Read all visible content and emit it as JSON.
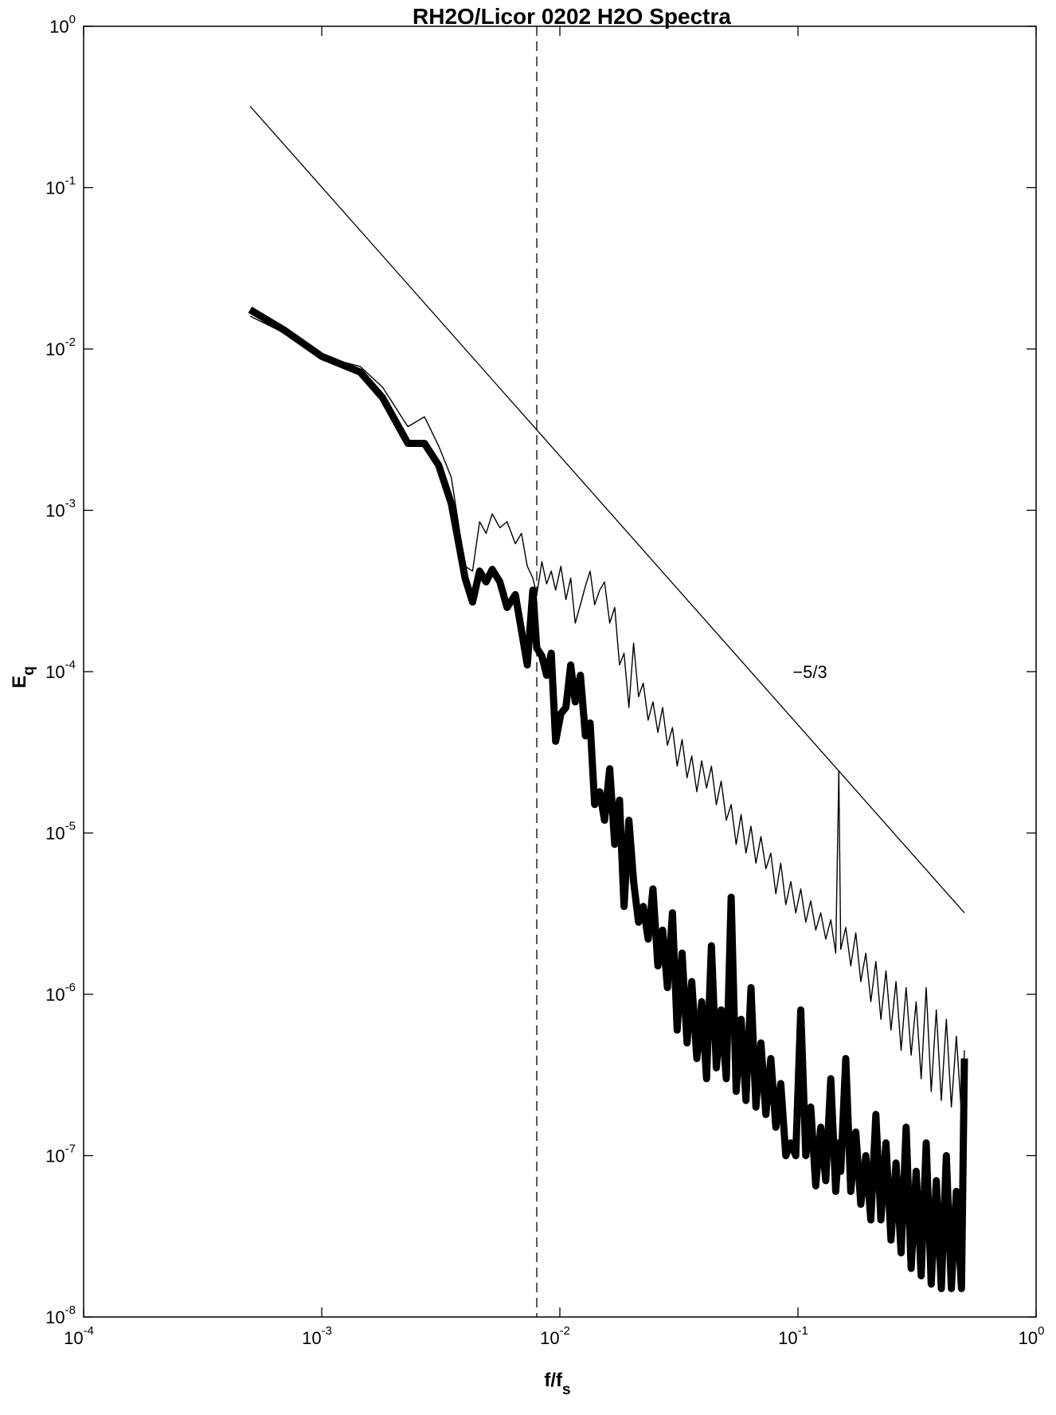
{
  "chart_data": {
    "type": "line",
    "title": "RH2O/Licor 0202 H2O Spectra",
    "xlabel": {
      "base": "f/f",
      "sub": "s"
    },
    "ylabel": {
      "base": "E",
      "sub": "q"
    },
    "x_scale": "log",
    "y_scale": "log",
    "xlim": [
      0.0001,
      1
    ],
    "ylim": [
      1e-08,
      1
    ],
    "grid": false,
    "x_ticks": [
      {
        "value": 0.0001,
        "base": "10",
        "exp": "-4"
      },
      {
        "value": 0.001,
        "base": "10",
        "exp": "-3"
      },
      {
        "value": 0.01,
        "base": "10",
        "exp": "-2"
      },
      {
        "value": 0.1,
        "base": "10",
        "exp": "-1"
      },
      {
        "value": 1,
        "base": "10",
        "exp": "0"
      }
    ],
    "y_ticks": [
      {
        "value": 1,
        "base": "10",
        "exp": "0"
      },
      {
        "value": 0.1,
        "base": "10",
        "exp": "-1"
      },
      {
        "value": 0.01,
        "base": "10",
        "exp": "-2"
      },
      {
        "value": 0.001,
        "base": "10",
        "exp": "-3"
      },
      {
        "value": 0.0001,
        "base": "10",
        "exp": "-4"
      },
      {
        "value": 1e-05,
        "base": "10",
        "exp": "-5"
      },
      {
        "value": 1e-06,
        "base": "10",
        "exp": "-6"
      },
      {
        "value": 1e-07,
        "base": "10",
        "exp": "-7"
      },
      {
        "value": 1e-08,
        "base": "10",
        "exp": "-8"
      }
    ],
    "reference_line": {
      "slope_label": "−5/3",
      "x": [
        0.0005,
        0.5
      ],
      "y": [
        0.32,
        3.2e-06
      ],
      "label_at": [
        0.095,
        0.0001
      ]
    },
    "vertical_line": {
      "x": 0.008,
      "style": "dashed"
    },
    "series": [
      {
        "style": "thin",
        "x": [
          0.0005,
          0.0007,
          0.001,
          0.00145,
          0.0018,
          0.0023,
          0.0027,
          0.0031,
          0.0035,
          0.004,
          0.0043,
          0.0046,
          0.0049,
          0.0052,
          0.0056,
          0.006,
          0.0065,
          0.0069,
          0.0073,
          0.0077,
          0.008,
          0.0084,
          0.0088,
          0.0092,
          0.0096,
          0.0101,
          0.0106,
          0.0111,
          0.0116,
          0.0122,
          0.0128,
          0.0134,
          0.014,
          0.0147,
          0.0154,
          0.0162,
          0.017,
          0.0178,
          0.0186,
          0.0195,
          0.0204,
          0.0214,
          0.0224,
          0.0235,
          0.0246,
          0.0258,
          0.027,
          0.0283,
          0.0297,
          0.0311,
          0.0326,
          0.0342,
          0.0358,
          0.0376,
          0.0394,
          0.0413,
          0.0433,
          0.0454,
          0.0476,
          0.05,
          0.0524,
          0.055,
          0.0577,
          0.0605,
          0.0635,
          0.0666,
          0.0699,
          0.0733,
          0.0769,
          0.0807,
          0.0847,
          0.0889,
          0.0933,
          0.0979,
          0.1027,
          0.1078,
          0.1131,
          0.1187,
          0.1246,
          0.1308,
          0.1373,
          0.1441,
          0.1485,
          0.1512,
          0.1587,
          0.1666,
          0.1749,
          0.1836,
          0.1927,
          0.2023,
          0.2124,
          0.223,
          0.2341,
          0.2458,
          0.2581,
          0.271,
          0.2845,
          0.2987,
          0.3136,
          0.3292,
          0.3456,
          0.3628,
          0.3809,
          0.3999,
          0.4198,
          0.4407,
          0.4627,
          0.4858,
          0.5
        ],
        "y": [
          0.016,
          0.0125,
          0.009,
          0.0078,
          0.0058,
          0.0033,
          0.0038,
          0.0025,
          0.0016,
          0.00045,
          0.00042,
          0.00085,
          0.00072,
          0.00095,
          0.00078,
          0.00085,
          0.00062,
          0.00072,
          0.00045,
          0.00038,
          0.0003,
          0.00048,
          0.00035,
          0.00042,
          0.00032,
          0.00045,
          0.00028,
          0.00038,
          0.0002,
          0.00026,
          0.00034,
          0.00042,
          0.00026,
          0.00032,
          0.00036,
          0.0002,
          0.00025,
          0.00011,
          0.00013,
          6e-05,
          0.00015,
          7e-05,
          8.5e-05,
          5e-05,
          6.5e-05,
          4.2e-05,
          6e-05,
          3.5e-05,
          4.5e-05,
          2.6e-05,
          3.8e-05,
          2.2e-05,
          3e-05,
          1.8e-05,
          2.8e-05,
          1.9e-05,
          2.6e-05,
          1.5e-05,
          2.1e-05,
          1.2e-05,
          1.5e-05,
          8.5e-06,
          1.3e-05,
          7.5e-06,
          1.1e-05,
          6.5e-06,
          9.5e-06,
          6e-06,
          7.5e-06,
          4.2e-06,
          6.5e-06,
          3.6e-06,
          5e-06,
          3.2e-06,
          4.5e-06,
          2.8e-06,
          3.8e-06,
          2.5e-06,
          3.2e-06,
          2.2e-06,
          2.9e-06,
          1.8e-06,
          2.4e-05,
          1.9e-06,
          2.6e-06,
          1.5e-06,
          2.4e-06,
          1.2e-06,
          1.8e-06,
          9e-07,
          1.6e-06,
          7e-07,
          1.4e-06,
          6e-07,
          1.2e-06,
          4.5e-07,
          1.1e-06,
          4.2e-07,
          9e-07,
          3e-07,
          1.1e-06,
          2.5e-07,
          8e-07,
          2.2e-07,
          7e-07,
          2e-07,
          5.5e-07,
          1.8e-07,
          4.5e-07
        ]
      },
      {
        "style": "thick",
        "x": [
          0.0005,
          0.0007,
          0.001,
          0.00145,
          0.0018,
          0.0023,
          0.0027,
          0.0031,
          0.0035,
          0.004,
          0.0043,
          0.0046,
          0.0049,
          0.0052,
          0.0056,
          0.006,
          0.0065,
          0.0069,
          0.0073,
          0.0077,
          0.008,
          0.0084,
          0.0088,
          0.0092,
          0.0096,
          0.0101,
          0.0106,
          0.0111,
          0.0116,
          0.0122,
          0.0128,
          0.0134,
          0.014,
          0.0147,
          0.0154,
          0.0162,
          0.017,
          0.0178,
          0.0186,
          0.0195,
          0.0204,
          0.0214,
          0.0224,
          0.0235,
          0.0246,
          0.0258,
          0.027,
          0.0283,
          0.0297,
          0.0311,
          0.0326,
          0.0342,
          0.0358,
          0.0376,
          0.0394,
          0.0413,
          0.0433,
          0.0454,
          0.0476,
          0.05,
          0.0524,
          0.055,
          0.0577,
          0.0605,
          0.0635,
          0.0666,
          0.0699,
          0.0733,
          0.0769,
          0.0807,
          0.0847,
          0.0889,
          0.0933,
          0.0979,
          0.1027,
          0.1078,
          0.1131,
          0.1187,
          0.1246,
          0.1308,
          0.1373,
          0.1441,
          0.1485,
          0.1512,
          0.1587,
          0.1666,
          0.1749,
          0.1836,
          0.1927,
          0.2023,
          0.2124,
          0.223,
          0.2341,
          0.2458,
          0.2581,
          0.271,
          0.2845,
          0.2987,
          0.3136,
          0.3292,
          0.3456,
          0.3628,
          0.3809,
          0.3999,
          0.4198,
          0.4407,
          0.4627,
          0.4858,
          0.5
        ],
        "y": [
          0.0175,
          0.013,
          0.009,
          0.0072,
          0.005,
          0.0026,
          0.0026,
          0.0019,
          0.0011,
          0.00038,
          0.00027,
          0.00042,
          0.00036,
          0.00043,
          0.00036,
          0.00025,
          0.0003,
          0.00018,
          0.00011,
          0.00032,
          0.00014,
          0.000125,
          9.5e-05,
          0.00013,
          3.7e-05,
          5.5e-05,
          6e-05,
          0.00011,
          6.5e-05,
          9.5e-05,
          4e-05,
          4.8e-05,
          1.5e-05,
          1.8e-05,
          1.2e-05,
          2.5e-05,
          8.5e-06,
          1.6e-05,
          3.5e-06,
          1.2e-05,
          5e-06,
          2.8e-06,
          3.5e-06,
          2.2e-06,
          4.5e-06,
          1.5e-06,
          2.5e-06,
          1.1e-06,
          3.2e-06,
          6e-07,
          1.8e-06,
          5e-07,
          1.2e-06,
          4e-07,
          9e-07,
          3e-07,
          2e-06,
          3.5e-07,
          8e-07,
          3e-07,
          4e-06,
          2.5e-07,
          7e-07,
          2.2e-07,
          1.1e-06,
          2e-07,
          5e-07,
          1.8e-07,
          4e-07,
          1.5e-07,
          2.8e-07,
          1e-07,
          1.2e-07,
          1e-07,
          8e-07,
          1e-07,
          2e-07,
          6.5e-08,
          1.5e-07,
          7e-08,
          3e-07,
          6e-08,
          1.2e-07,
          8e-08,
          4e-07,
          6e-08,
          1.4e-07,
          5e-08,
          1e-07,
          4e-08,
          1.8e-07,
          4e-08,
          1.2e-07,
          3e-08,
          9e-08,
          2.5e-08,
          1.5e-07,
          2e-08,
          8e-08,
          1.8e-08,
          1.2e-07,
          1.6e-08,
          7e-08,
          1.5e-08,
          1e-07,
          1.5e-08,
          6e-08,
          1.5e-08,
          4e-07
        ]
      }
    ]
  }
}
